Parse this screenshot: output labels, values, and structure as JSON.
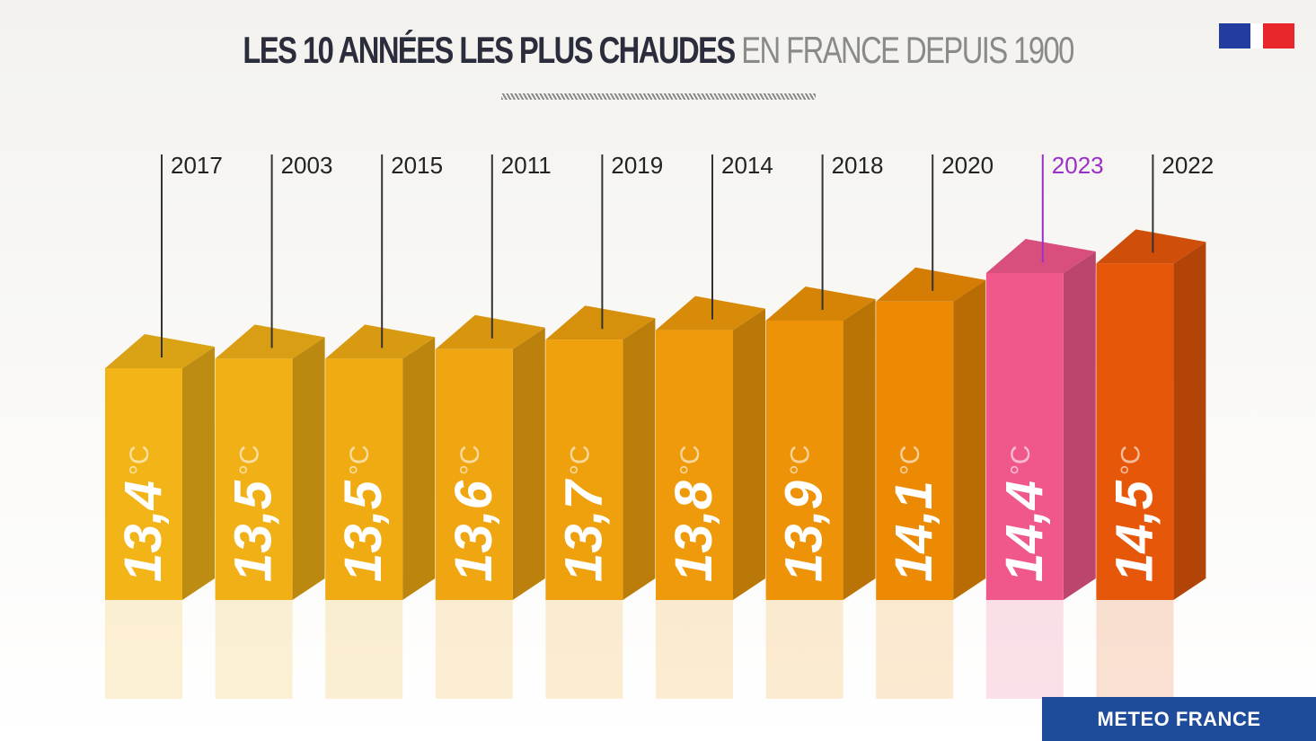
{
  "chart_data": {
    "type": "bar",
    "title_bold": "LES 10 ANNÉES LES PLUS CHAUDES",
    "title_light": "EN FRANCE DEPUIS 1900",
    "unit": "°C",
    "categories": [
      "2017",
      "2003",
      "2015",
      "2011",
      "2019",
      "2014",
      "2018",
      "2020",
      "2023",
      "2022"
    ],
    "values": [
      13.4,
      13.5,
      13.5,
      13.6,
      13.7,
      13.8,
      13.9,
      14.1,
      14.4,
      14.5
    ],
    "value_labels": [
      "13,4",
      "13,5",
      "13,5",
      "13,6",
      "13,7",
      "13,8",
      "13,9",
      "14,1",
      "14,4",
      "14,5"
    ],
    "highlight": {
      "category": "2023",
      "color": "#f0588c",
      "label_color": "#9b2fc7"
    },
    "colors": [
      "#f2b417",
      "#f1b015",
      "#f0ab12",
      "#f0a610",
      "#efa00d",
      "#ef9a0a",
      "#ee9307",
      "#ed8a04",
      "#f0588c",
      "#e6570a"
    ],
    "grid": false
  },
  "brand": "METEO FRANCE"
}
